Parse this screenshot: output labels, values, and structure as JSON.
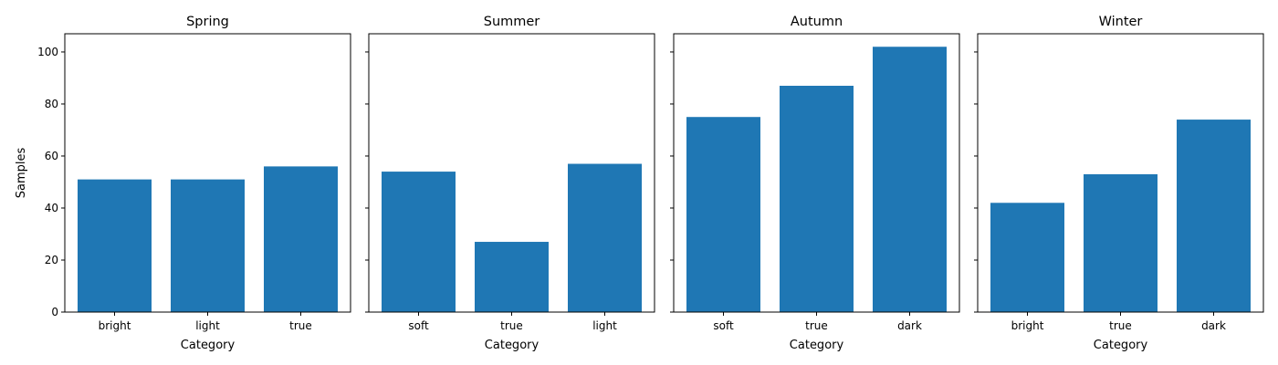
{
  "chart_data": [
    {
      "type": "bar",
      "title": "Spring",
      "categories": [
        "bright",
        "light",
        "true"
      ],
      "values": [
        51,
        51,
        56
      ],
      "xlabel": "Category",
      "ylabel": "Samples",
      "ylim": [
        0,
        107
      ],
      "yticks": [
        0,
        20,
        40,
        60,
        80,
        100
      ],
      "grid": false
    },
    {
      "type": "bar",
      "title": "Summer",
      "categories": [
        "soft",
        "true",
        "light"
      ],
      "values": [
        54,
        27,
        57
      ],
      "xlabel": "Category",
      "ylabel": "",
      "ylim": [
        0,
        107
      ],
      "yticks": [
        0,
        20,
        40,
        60,
        80,
        100
      ],
      "grid": false
    },
    {
      "type": "bar",
      "title": "Autumn",
      "categories": [
        "soft",
        "true",
        "dark"
      ],
      "values": [
        75,
        87,
        102
      ],
      "xlabel": "Category",
      "ylabel": "",
      "ylim": [
        0,
        107
      ],
      "yticks": [
        0,
        20,
        40,
        60,
        80,
        100
      ],
      "grid": false
    },
    {
      "type": "bar",
      "title": "Winter",
      "categories": [
        "bright",
        "true",
        "dark"
      ],
      "values": [
        42,
        53,
        74
      ],
      "xlabel": "Category",
      "ylabel": "",
      "ylim": [
        0,
        107
      ],
      "yticks": [
        0,
        20,
        40,
        60,
        80,
        100
      ],
      "grid": false
    }
  ],
  "colors": {
    "bar": "#1f77b4",
    "axis": "#000000"
  }
}
